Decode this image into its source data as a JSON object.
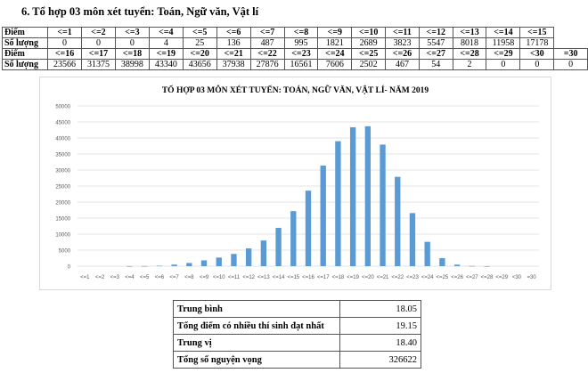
{
  "heading": "6. Tổ hợp 03 môn xét tuyển: Toán, Ngữ văn, Vật lí",
  "score_table": {
    "row_label_score": "Điểm",
    "row_label_count": "Số lượng",
    "row1": {
      "scores": [
        "<=1",
        "<=2",
        "<=3",
        "<=4",
        "<=5",
        "<=6",
        "<=7",
        "<=8",
        "<=9",
        "<=10",
        "<=11",
        "<=12",
        "<=13",
        "<=14",
        "<=15"
      ],
      "counts": [
        "0",
        "0",
        "0",
        "4",
        "25",
        "136",
        "487",
        "995",
        "1821",
        "2689",
        "3823",
        "5547",
        "8018",
        "11958",
        "17178"
      ]
    },
    "row2": {
      "scores": [
        "<=16",
        "<=17",
        "<=18",
        "<=19",
        "<=20",
        "<=21",
        "<=22",
        "<=23",
        "<=24",
        "<=25",
        "<=26",
        "<=27",
        "<=28",
        "<=29",
        "<30",
        "=30"
      ],
      "counts": [
        "23566",
        "31375",
        "38998",
        "43340",
        "43656",
        "37938",
        "27876",
        "16561",
        "7606",
        "2502",
        "467",
        "54",
        "2",
        "0",
        "0",
        "0"
      ]
    }
  },
  "chart_data": {
    "type": "bar",
    "title": "TỔ HỢP 03 MÔN XÉT TUYỂN: TOÁN, NGỮ VĂN, VẬT LÍ- NĂM 2019",
    "xlabel": "",
    "ylabel": "",
    "ylim": [
      0,
      50000
    ],
    "yticks": [
      0,
      5000,
      10000,
      15000,
      20000,
      25000,
      30000,
      35000,
      40000,
      45000,
      50000
    ],
    "grid": true,
    "legend": false,
    "bar_color": "#5b9bd5",
    "categories": [
      "<=1",
      "<=2",
      "<=3",
      "<=4",
      "<=5",
      "<=6",
      "<=7",
      "<=8",
      "<=9",
      "<=10",
      "<=11",
      "<=12",
      "<=13",
      "<=14",
      "<=15",
      "<=16",
      "<=17",
      "<=18",
      "<=19",
      "<=20",
      "<=21",
      "<=22",
      "<=23",
      "<=24",
      "<=25",
      "<=26",
      "<=27",
      "<=28",
      "<=29",
      "<30",
      "=30"
    ],
    "values": [
      0,
      0,
      0,
      4,
      25,
      136,
      487,
      995,
      1821,
      2689,
      3823,
      5547,
      8018,
      11958,
      17178,
      23566,
      31375,
      38998,
      43340,
      43656,
      37938,
      27876,
      16561,
      7606,
      2502,
      467,
      54,
      2,
      0,
      0,
      0
    ]
  },
  "stats": [
    {
      "label": "Trung bình",
      "value": "18.05"
    },
    {
      "label": "Tổng điểm có nhiều thí sinh đạt nhất",
      "value": "19.15"
    },
    {
      "label": "Trung vị",
      "value": "18.40"
    },
    {
      "label": "Tổng số nguyện vọng",
      "value": "326622"
    }
  ]
}
